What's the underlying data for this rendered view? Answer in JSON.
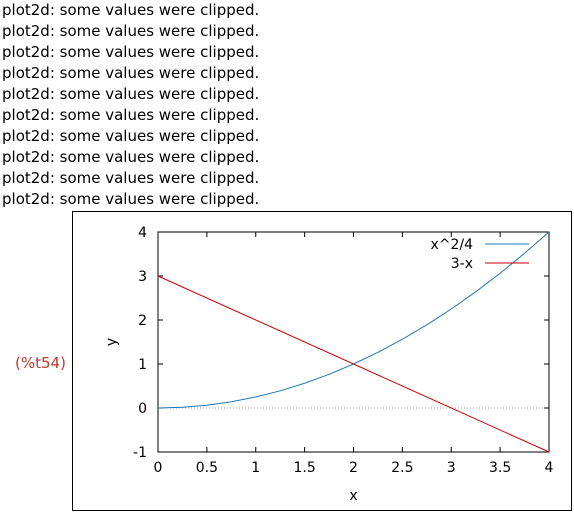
{
  "messages": [
    "plot2d: some values were clipped.",
    "plot2d: some values were clipped.",
    "plot2d: some values were clipped.",
    "plot2d: some values were clipped.",
    "plot2d: some values were clipped.",
    "plot2d: some values were clipped.",
    "plot2d: some values were clipped.",
    "plot2d: some values were clipped.",
    "plot2d: some values were clipped.",
    "plot2d: some values were clipped."
  ],
  "output_label": "(%t54)",
  "colors": {
    "output_label": "#c0392b",
    "series_1": "#1f77b4",
    "series_2": "#cc0000",
    "zero_line": "#a0a0a0"
  },
  "chart_data": {
    "type": "line",
    "title": "",
    "xlabel": "x",
    "ylabel": "y",
    "xlim": [
      0,
      4
    ],
    "ylim": [
      -1,
      4
    ],
    "xticks": [
      "0",
      "0.5",
      "1",
      "1.5",
      "2",
      "2.5",
      "3",
      "3.5",
      "4"
    ],
    "yticks": [
      "-1",
      "0",
      "1",
      "2",
      "3",
      "4"
    ],
    "grid": false,
    "zero_line": true,
    "legend_position": "top-right",
    "series": [
      {
        "name": "x^2/4",
        "color": "#1f77b4",
        "x": [
          0,
          0.25,
          0.5,
          0.75,
          1,
          1.25,
          1.5,
          1.75,
          2,
          2.25,
          2.5,
          2.75,
          3,
          3.25,
          3.5,
          3.75,
          4
        ],
        "y": [
          0,
          0.016,
          0.0625,
          0.141,
          0.25,
          0.391,
          0.5625,
          0.766,
          1,
          1.266,
          1.5625,
          1.891,
          2.25,
          2.641,
          3.0625,
          3.516,
          4
        ]
      },
      {
        "name": "3-x",
        "color": "#cc0000",
        "x": [
          0,
          4
        ],
        "y": [
          3,
          -1
        ]
      }
    ]
  }
}
